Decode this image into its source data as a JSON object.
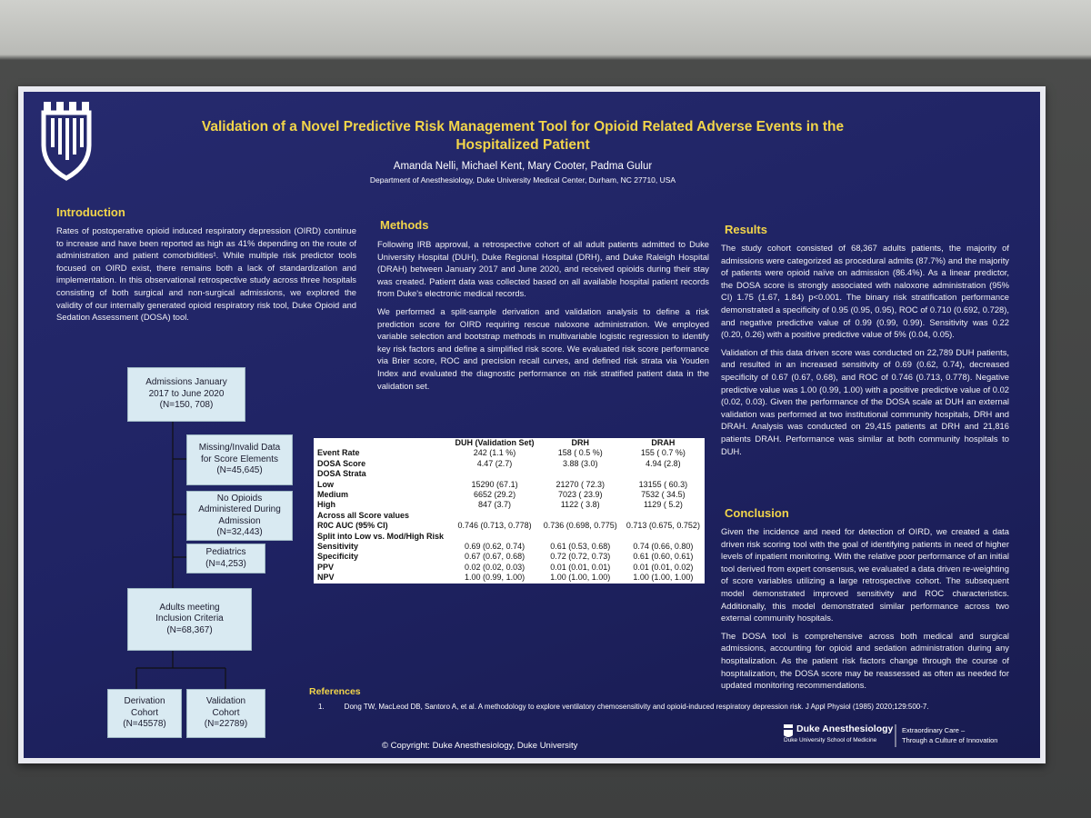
{
  "header": {
    "title_lines": [
      "Validation of a Novel Predictive Risk Management Tool for Opioid Related Adverse Events in the",
      "Hospitalized Patient"
    ],
    "authors": "Amanda Nelli, Michael Kent, Mary Cooter, Padma Gulur",
    "affiliation": "Department of Anesthesiology, Duke University Medical Center, Durham, NC 27710, USA"
  },
  "introduction": {
    "heading": "Introduction",
    "paragraphs": [
      "Rates of postoperative opioid induced respiratory depression (OIRD) continue to increase and have been reported as high as 41% depending on the route of administration and patient comorbidities¹. While multiple risk predictor tools focused on OIRD exist, there remains both a lack of standardization and implementation. In this observational retrospective study across three hospitals consisting of both surgical and non-surgical admissions, we explored the validity of our internally generated opioid respiratory risk tool, Duke Opioid and Sedation Assessment (DOSA) tool."
    ]
  },
  "flowchart": {
    "nodes": [
      {
        "lines": [
          "Admissions January",
          "2017 to June 2020",
          "(N=150, 708)"
        ]
      },
      {
        "lines": [
          "Missing/Invalid Data",
          "for Score Elements",
          "(N=45,645)"
        ]
      },
      {
        "lines": [
          "No Opioids",
          "Administered During",
          "Admission",
          "(N=32,443)"
        ]
      },
      {
        "lines": [
          "Pediatrics",
          "(N=4,253)"
        ]
      },
      {
        "lines": [
          "Adults meeting",
          "Inclusion Criteria",
          "(N=68,367)"
        ]
      },
      {
        "lines": [
          "Derivation",
          "Cohort",
          "(N=45578)"
        ]
      },
      {
        "lines": [
          "Validation",
          "Cohort",
          "(N=22789)"
        ]
      }
    ]
  },
  "methods": {
    "heading": "Methods",
    "paragraphs": [
      "Following IRB approval, a retrospective cohort of all adult patients admitted to Duke University Hospital (DUH), Duke Regional Hospital (DRH), and Duke Raleigh Hospital (DRAH) between January 2017 and June 2020, and received opioids during their stay was created. Patient data was collected based on all available hospital patient records from Duke's electronic medical records.",
      "We performed a split-sample derivation and validation analysis to define a risk prediction score for OIRD requiring rescue naloxone administration. We employed variable selection and bootstrap methods in multivariable logistic regression to identify key risk factors and define a simplified risk score. We evaluated risk score performance via Brier score, ROC and precision recall curves, and defined risk strata via Youden Index and evaluated the diagnostic performance on risk stratified patient data in the validation set."
    ]
  },
  "table": {
    "header": [
      "DUH (Validation Set)",
      "DRH",
      "DRAH"
    ],
    "rows": [
      [
        "Event Rate",
        "242 (1.1 %)",
        "158 ( 0.5 %)",
        "155 ( 0.7 %)"
      ],
      [
        "DOSA Score",
        "4.47 (2.7)",
        "3.88 (3.0)",
        "4.94 (2.8)"
      ],
      [
        "DOSA Strata"
      ],
      [
        "Low",
        "15290 (67.1)",
        "21270 ( 72.3)",
        "13155 ( 60.3)"
      ],
      [
        "Medium",
        "6652 (29.2)",
        "7023 ( 23.9)",
        "7532 ( 34.5)"
      ],
      [
        "High",
        "847 (3.7)",
        "1122 ( 3.8)",
        "1129 ( 5.2)"
      ],
      [
        "Across all Score values"
      ],
      [
        "R0C AUC (95% CI)",
        "0.746 (0.713, 0.778)",
        "0.736 (0.698, 0.775)",
        "0.713 (0.675, 0.752)"
      ],
      [
        "Split into Low vs. Mod/High Risk"
      ],
      [
        "Sensitivity",
        "0.69 (0.62, 0.74)",
        "0.61 (0.53, 0.68)",
        "0.74 (0.66, 0.80)"
      ],
      [
        "Specificity",
        "0.67 (0.67, 0.68)",
        "0.72 (0.72, 0.73)",
        "0.61 (0.60, 0.61)"
      ],
      [
        "PPV",
        "0.02 (0.02, 0.03)",
        "0.01 (0.01, 0.01)",
        "0.01 (0.01, 0.02)"
      ],
      [
        "NPV",
        "1.00 (0.99, 1.00)",
        "1.00 (1.00, 1.00)",
        "1.00 (1.00, 1.00)"
      ]
    ]
  },
  "results": {
    "heading": "Results",
    "paragraphs": [
      "The study cohort consisted of 68,367 adults patients, the majority of admissions were categorized as procedural admits (87.7%) and the majority of patients were opioid naïve on admission (86.4%). As a linear predictor, the DOSA score is strongly associated with naloxone administration (95% CI) 1.75 (1.67, 1.84) p<0.001. The binary risk stratification performance demonstrated a specificity of 0.95 (0.95, 0.95), ROC of 0.710 (0.692, 0.728), and negative predictive value of 0.99 (0.99, 0.99). Sensitivity was 0.22 (0.20, 0.26) with a positive predictive value of 5% (0.04, 0.05).",
      "Validation of this data driven score was conducted on 22,789 DUH patients, and resulted in an increased sensitivity of 0.69 (0.62, 0.74), decreased specificity of 0.67 (0.67, 0.68), and ROC of 0.746 (0.713, 0.778). Negative predictive value was 1.00 (0.99, 1.00) with a positive predictive value of 0.02 (0.02, 0.03). Given the performance of the DOSA scale at DUH an external validation was performed at two institutional community hospitals, DRH and DRAH. Analysis was conducted on 29,415 patients at DRH and 21,816 patients DRAH. Performance was similar at both community hospitals to DUH."
    ]
  },
  "conclusion": {
    "heading": "Conclusion",
    "paragraphs": [
      "Given the incidence and need for detection of OIRD, we created a data driven risk scoring tool with the goal of identifying patients in need of higher levels of inpatient monitoring. With the relative poor performance of an initial tool derived from expert consensus, we evaluated a data driven re-weighting of score variables utilizing a large retrospective cohort. The subsequent model demonstrated improved sensitivity and ROC characteristics. Additionally, this model demonstrated similar performance across two external community hospitals.",
      "The DOSA tool is comprehensive across both medical and surgical admissions, accounting for opioid and sedation administration during any hospitalization. As the patient risk factors change through the course of hospitalization, the DOSA score may be reassessed as often as needed for updated monitoring recommendations."
    ]
  },
  "references": {
    "heading": "References",
    "items": [
      {
        "number": "1.",
        "text": "Dong TW, MacLeod DB, Santoro A, et al. A methodology to explore ventilatory chemosensitivity and opioid-induced respiratory depression risk. J Appl Physiol (1985) 2020;129:500-7."
      }
    ]
  },
  "copyright": "© Copyright: Duke Anesthesiology, Duke University",
  "footer": {
    "brand": "Duke Anesthesiology",
    "school": "Duke University School of Medicine",
    "tagline_lines": [
      "Extraordinary Care –",
      "Through a Culture of Innovation"
    ]
  }
}
